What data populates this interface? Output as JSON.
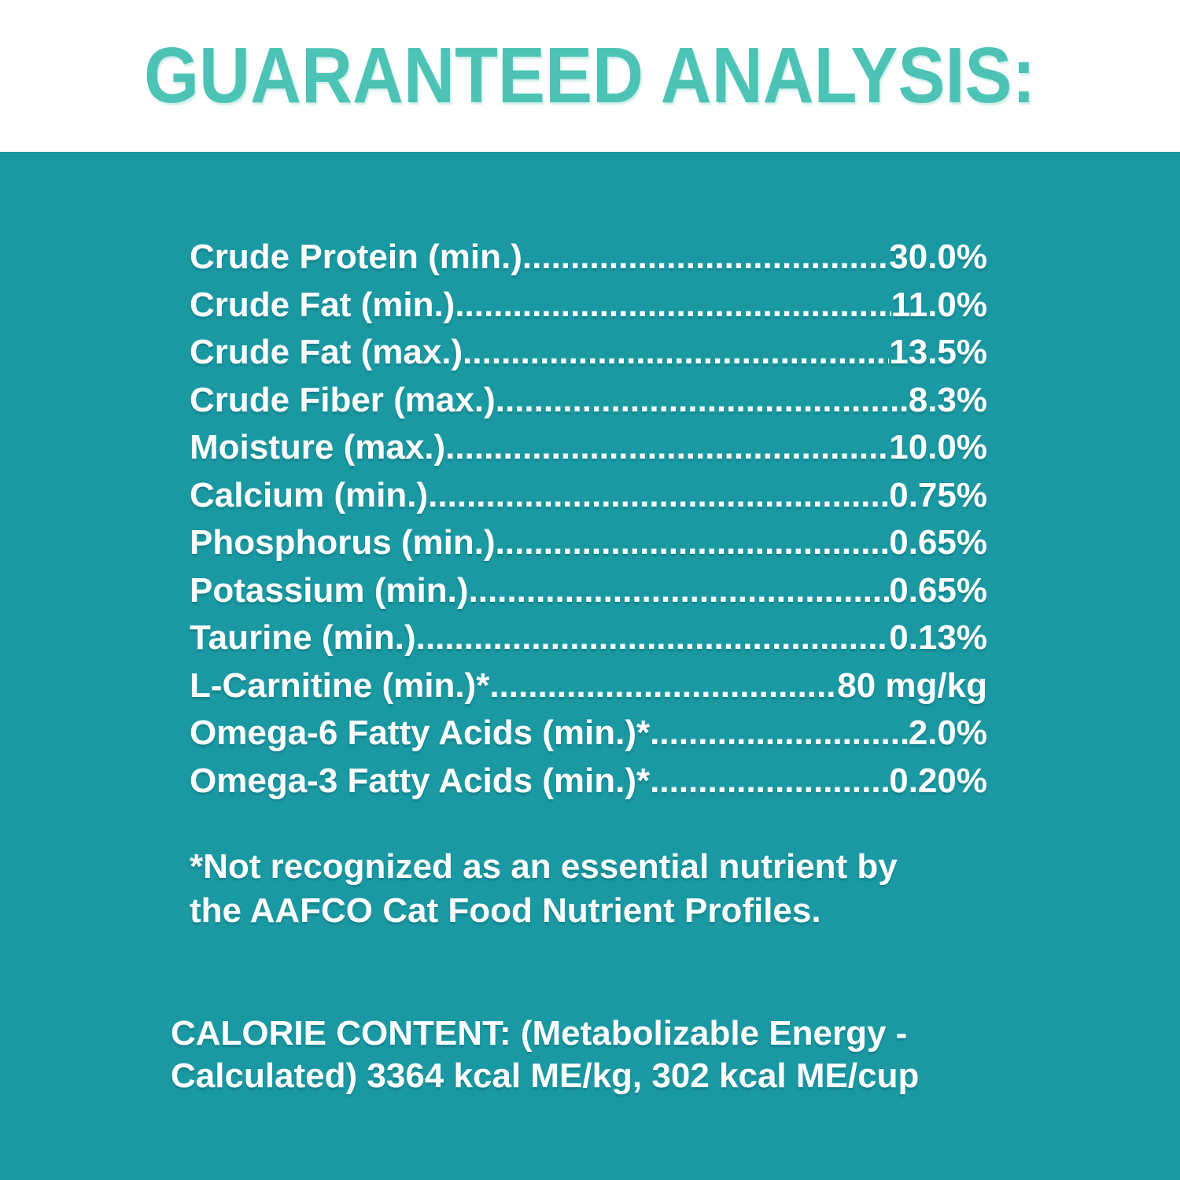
{
  "colors": {
    "panel_background": "#1a99a3",
    "title_text": "#4cc3b5",
    "body_text": "#ffffff",
    "band_background": "#ffffff"
  },
  "header": {
    "title": "GUARANTEED ANALYSIS:"
  },
  "analysis": {
    "rows": [
      {
        "label": "Crude Protein (min.)",
        "value": "30.0%"
      },
      {
        "label": "Crude Fat (min.)",
        "value": "11.0%"
      },
      {
        "label": "Crude Fat (max.)",
        "value": "13.5%"
      },
      {
        "label": "Crude Fiber (max.)",
        "value": "8.3%"
      },
      {
        "label": "Moisture (max.)",
        "value": "10.0%"
      },
      {
        "label": "Calcium (min.)",
        "value": "0.75%"
      },
      {
        "label": "Phosphorus (min.)",
        "value": "0.65%"
      },
      {
        "label": "Potassium (min.)",
        "value": "0.65%"
      },
      {
        "label": "Taurine (min.)",
        "value": "0.13%"
      },
      {
        "label": "L-Carnitine (min.)*",
        "value": "80 mg/kg"
      },
      {
        "label": "Omega-6 Fatty Acids (min.)*",
        "value": "2.0%"
      },
      {
        "label": "Omega-3 Fatty Acids (min.)*",
        "value": "0.20%"
      }
    ],
    "footnote_lines": [
      "*Not recognized as an essential nutrient by",
      "the AAFCO Cat Food Nutrient Profiles."
    ],
    "calorie_lines": [
      "CALORIE CONTENT: (Metabolizable Energy -",
      "Calculated) 3364 kcal ME/kg, 302 kcal ME/cup"
    ]
  }
}
